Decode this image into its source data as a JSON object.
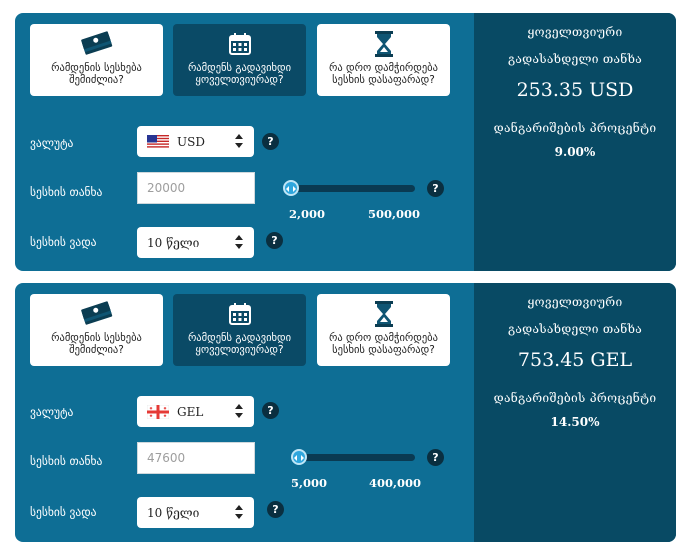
{
  "calculators": [
    {
      "tabs": [
        {
          "label": "რამდენის სესხება შემიძლია?",
          "icon": "money-stack-icon",
          "active": false
        },
        {
          "label": "რამდენს გადავიხდი ყოველთვიურად?",
          "icon": "calendar-icon",
          "active": true
        },
        {
          "label": "რა დრო დამჭირდება სესხის დასაფარად?",
          "icon": "hourglass-icon",
          "active": false
        }
      ],
      "currency": {
        "label": "ვალუტა",
        "value": "USD",
        "flag": "us-flag-icon"
      },
      "amount": {
        "label": "სესხის თანხა",
        "placeholder": "20000",
        "slider_fraction": 0.0,
        "min": "2,000",
        "max": "500,000"
      },
      "term": {
        "label": "სესხის ვადა",
        "value": "10 წელი"
      },
      "help": "?",
      "result": {
        "amount_label": "ყოველთვიური გადასახდელი თანხა",
        "amount": "253.35 USD",
        "rate_label": "დანგარიშების პროცენტი",
        "rate": "9.00%"
      }
    },
    {
      "tabs": [
        {
          "label": "რამდენის სესხება შემიძლია?",
          "icon": "money-stack-icon",
          "active": false
        },
        {
          "label": "რამდენს გადავიხდი ყოველთვიურად?",
          "icon": "calendar-icon",
          "active": true
        },
        {
          "label": "რა დრო დამჭირდება სესხის დასაფარად?",
          "icon": "hourglass-icon",
          "active": false
        }
      ],
      "currency": {
        "label": "ვალუტა",
        "value": "GEL",
        "flag": "georgia-flag-icon"
      },
      "amount": {
        "label": "სესხის თანხა",
        "placeholder": "47600",
        "slider_fraction": 0.0,
        "min": "5,000",
        "max": "400,000"
      },
      "term": {
        "label": "სესხის ვადა",
        "value": "10 წელი"
      },
      "help": "?",
      "result": {
        "amount_label": "ყოველთვიური გადასახდელი თანხა",
        "amount": "753.45 GEL",
        "rate_label": "დანგარიშების პროცენტი",
        "rate": "14.50%"
      }
    }
  ]
}
